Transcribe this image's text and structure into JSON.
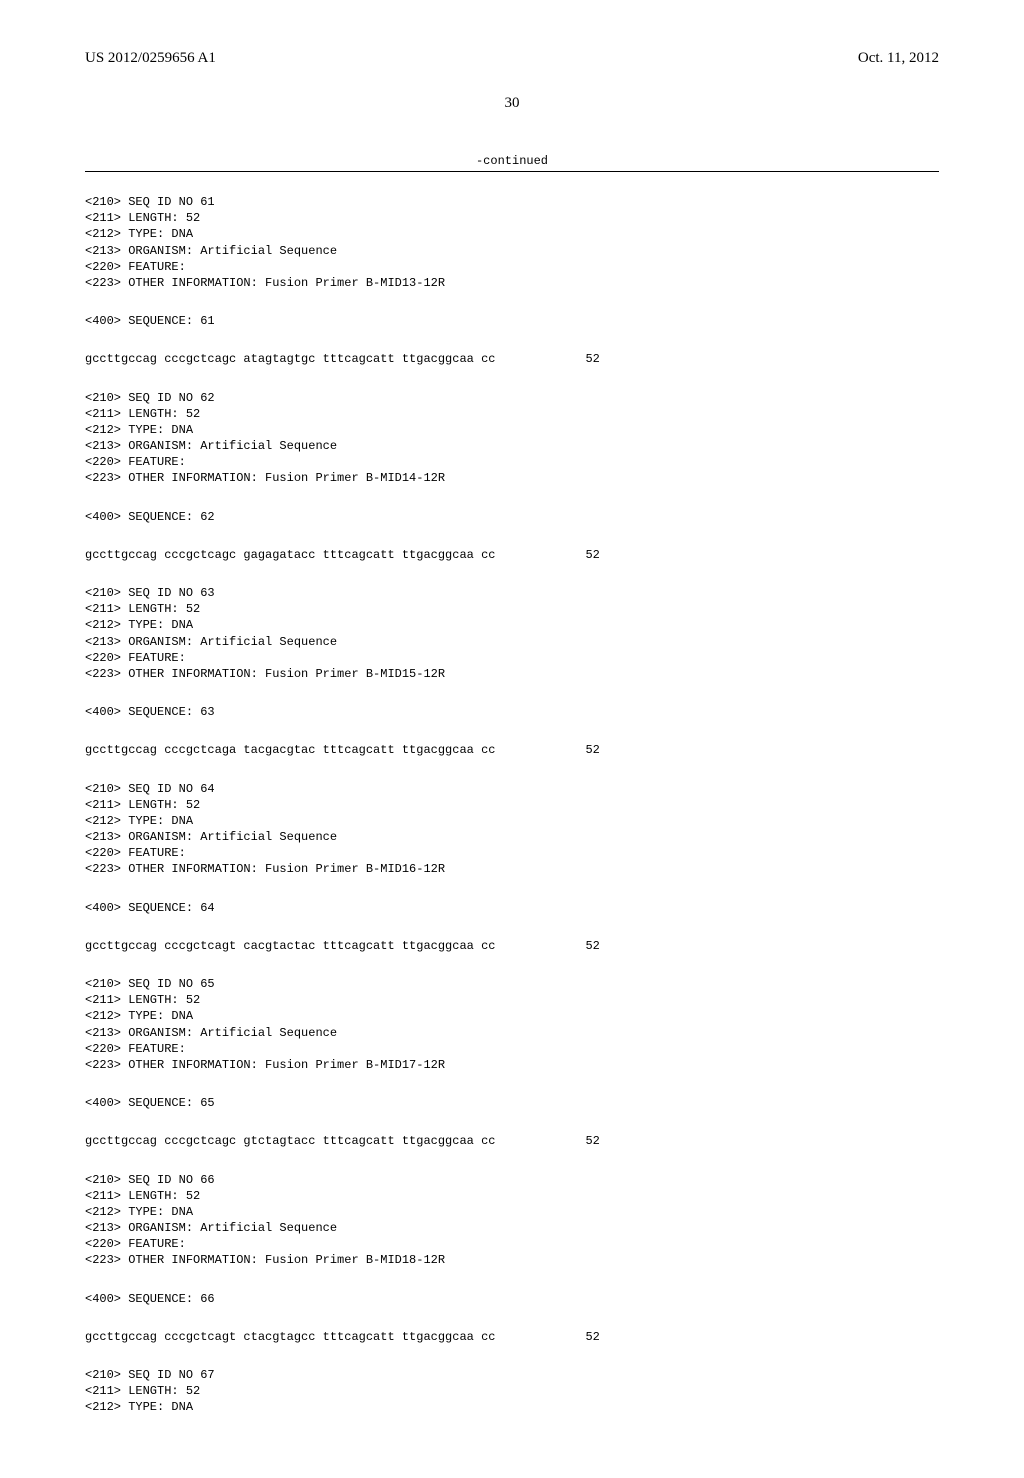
{
  "header": {
    "publication_number": "US 2012/0259656 A1",
    "publication_date": "Oct. 11, 2012"
  },
  "page_number": "30",
  "continued_label": "-continued",
  "sequences": [
    {
      "meta": "<210> SEQ ID NO 61\n<211> LENGTH: 52\n<212> TYPE: DNA\n<213> ORGANISM: Artificial Sequence\n<220> FEATURE:\n<223> OTHER INFORMATION: Fusion Primer B-MID13-12R",
      "seq_label": "<400> SEQUENCE: 61",
      "seq_line": "gccttgccag cccgctcagc atagtagtgc tttcagcatt ttgacggcaa cc",
      "length": "52"
    },
    {
      "meta": "<210> SEQ ID NO 62\n<211> LENGTH: 52\n<212> TYPE: DNA\n<213> ORGANISM: Artificial Sequence\n<220> FEATURE:\n<223> OTHER INFORMATION: Fusion Primer B-MID14-12R",
      "seq_label": "<400> SEQUENCE: 62",
      "seq_line": "gccttgccag cccgctcagc gagagatacc tttcagcatt ttgacggcaa cc",
      "length": "52"
    },
    {
      "meta": "<210> SEQ ID NO 63\n<211> LENGTH: 52\n<212> TYPE: DNA\n<213> ORGANISM: Artificial Sequence\n<220> FEATURE:\n<223> OTHER INFORMATION: Fusion Primer B-MID15-12R",
      "seq_label": "<400> SEQUENCE: 63",
      "seq_line": "gccttgccag cccgctcaga tacgacgtac tttcagcatt ttgacggcaa cc",
      "length": "52"
    },
    {
      "meta": "<210> SEQ ID NO 64\n<211> LENGTH: 52\n<212> TYPE: DNA\n<213> ORGANISM: Artificial Sequence\n<220> FEATURE:\n<223> OTHER INFORMATION: Fusion Primer B-MID16-12R",
      "seq_label": "<400> SEQUENCE: 64",
      "seq_line": "gccttgccag cccgctcagt cacgtactac tttcagcatt ttgacggcaa cc",
      "length": "52"
    },
    {
      "meta": "<210> SEQ ID NO 65\n<211> LENGTH: 52\n<212> TYPE: DNA\n<213> ORGANISM: Artificial Sequence\n<220> FEATURE:\n<223> OTHER INFORMATION: Fusion Primer B-MID17-12R",
      "seq_label": "<400> SEQUENCE: 65",
      "seq_line": "gccttgccag cccgctcagc gtctagtacc tttcagcatt ttgacggcaa cc",
      "length": "52"
    },
    {
      "meta": "<210> SEQ ID NO 66\n<211> LENGTH: 52\n<212> TYPE: DNA\n<213> ORGANISM: Artificial Sequence\n<220> FEATURE:\n<223> OTHER INFORMATION: Fusion Primer B-MID18-12R",
      "seq_label": "<400> SEQUENCE: 66",
      "seq_line": "gccttgccag cccgctcagt ctacgtagcc tttcagcatt ttgacggcaa cc",
      "length": "52"
    }
  ],
  "trailing_meta": "<210> SEQ ID NO 67\n<211> LENGTH: 52\n<212> TYPE: DNA"
}
